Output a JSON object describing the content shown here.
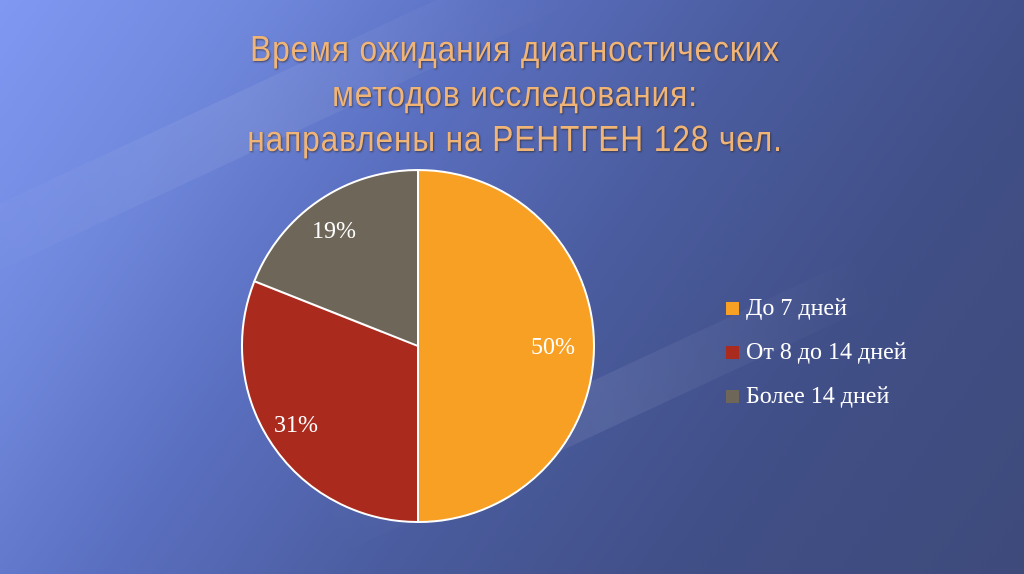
{
  "slide": {
    "title_lines": [
      "Время ожидания диагностических",
      "методов исследования:",
      "направлены на РЕНТГЕН 128 чел."
    ]
  },
  "colors": {
    "title": "#f0b476",
    "slice_1": "#f8a024",
    "slice_2": "#aa2a1e",
    "slice_3": "#6e6658",
    "background_light": "#8098f2",
    "background_dark": "#3d4a7a"
  },
  "chart_data": {
    "type": "pie",
    "title": "Время ожидания диагностических методов исследования: направлены на РЕНТГЕН 128 чел.",
    "categories": [
      "До 7 дней",
      "От 8 до 14 дней",
      "Более 14 дней"
    ],
    "values": [
      50,
      31,
      19
    ],
    "labels": [
      "50%",
      "31%",
      "19%"
    ],
    "colors": [
      "#f8a024",
      "#aa2a1e",
      "#6e6658"
    ],
    "legend_position": "right",
    "start_angle": "12 o'clock, clockwise"
  }
}
